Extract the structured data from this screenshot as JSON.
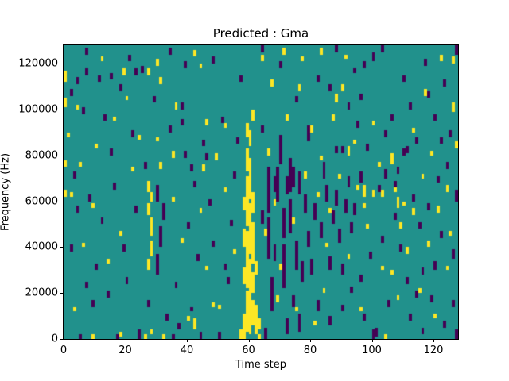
{
  "chart_data": {
    "type": "heatmap",
    "title": "Predicted : Gma",
    "xlabel": "Time step",
    "ylabel": "Frequency (Hz)",
    "grid_cols": 128,
    "grid_rows": 128,
    "x_range": [
      0,
      128
    ],
    "y_range": [
      0,
      128000
    ],
    "x_ticks": [
      0,
      20,
      40,
      60,
      80,
      100,
      120
    ],
    "y_ticks": [
      0,
      20000,
      40000,
      60000,
      80000,
      100000,
      120000
    ],
    "legend": "none",
    "grid": "off",
    "colormap": "viridis",
    "colors": {
      "mid": "#21918c",
      "high": "#fde725",
      "low": "#440154"
    },
    "default_class": "mid",
    "note": "3-level class map; runs are [col, rowStart, rowEnd], rows count from bottom (row*1000 Hz)",
    "low_runs": [
      [
        66,
        35,
        52
      ],
      [
        66,
        55,
        74
      ],
      [
        67,
        12,
        26
      ],
      [
        71,
        22,
        40
      ],
      [
        71,
        44,
        56
      ],
      [
        73,
        46,
        60
      ],
      [
        73,
        64,
        78
      ],
      [
        75,
        30,
        42
      ],
      [
        69,
        60,
        74
      ],
      [
        76,
        63,
        72
      ],
      [
        72,
        63,
        70
      ],
      [
        74,
        66,
        74
      ],
      [
        68,
        64,
        70
      ],
      [
        78,
        55,
        62
      ],
      [
        70,
        76,
        88
      ],
      [
        77,
        25,
        33
      ],
      [
        79,
        40,
        46
      ],
      [
        81,
        52,
        58
      ],
      [
        83,
        44,
        50
      ],
      [
        80,
        28,
        34
      ],
      [
        85,
        60,
        66
      ],
      [
        87,
        50,
        55
      ],
      [
        89,
        42,
        47
      ],
      [
        86,
        30,
        35
      ],
      [
        91,
        55,
        60
      ],
      [
        93,
        46,
        50
      ],
      [
        76,
        3,
        10
      ],
      [
        72,
        2,
        8
      ],
      [
        65,
        0,
        4
      ],
      [
        79,
        86,
        92
      ],
      [
        84,
        70,
        76
      ],
      [
        88,
        58,
        64
      ],
      [
        92,
        66,
        70
      ],
      [
        94,
        54,
        58
      ],
      [
        90,
        28,
        32
      ],
      [
        82,
        12,
        16
      ],
      [
        86,
        6,
        9
      ],
      [
        74,
        14,
        18
      ],
      [
        68,
        34,
        40
      ],
      [
        64,
        50,
        55
      ],
      [
        5,
        0,
        1
      ],
      [
        17,
        0,
        1
      ],
      [
        24,
        0,
        3
      ],
      [
        50,
        0,
        2
      ],
      [
        30,
        28,
        36
      ],
      [
        31,
        40,
        48
      ],
      [
        32,
        52,
        58
      ],
      [
        30,
        60,
        66
      ],
      [
        12,
        50,
        52
      ],
      [
        8,
        60,
        62
      ],
      [
        3,
        70,
        72
      ],
      [
        15,
        80,
        82
      ],
      [
        22,
        88,
        90
      ],
      [
        6,
        98,
        100
      ],
      [
        18,
        108,
        110
      ],
      [
        25,
        116,
        118
      ],
      [
        10,
        30,
        32
      ],
      [
        14,
        18,
        20
      ],
      [
        20,
        24,
        26
      ],
      [
        26,
        74,
        76
      ],
      [
        2,
        38,
        40
      ],
      [
        7,
        22,
        24
      ],
      [
        34,
        90,
        92
      ],
      [
        38,
        100,
        102
      ],
      [
        42,
        66,
        68
      ],
      [
        45,
        84,
        86
      ],
      [
        48,
        120,
        122
      ],
      [
        36,
        22,
        24
      ],
      [
        40,
        48,
        50
      ],
      [
        43,
        34,
        36
      ],
      [
        53,
        24,
        26
      ],
      [
        55,
        70,
        72
      ],
      [
        47,
        58,
        60
      ],
      [
        51,
        94,
        96
      ],
      [
        33,
        8,
        10
      ],
      [
        37,
        4,
        6
      ],
      [
        41,
        12,
        13
      ],
      [
        16,
        65,
        67
      ],
      [
        23,
        55,
        57
      ],
      [
        29,
        103,
        105
      ],
      [
        11,
        112,
        114
      ],
      [
        56,
        85,
        87
      ],
      [
        54,
        49,
        51
      ],
      [
        39,
        118,
        120
      ],
      [
        34,
        124,
        126
      ],
      [
        39,
        79,
        81
      ],
      [
        46,
        78,
        80
      ],
      [
        41,
        73,
        75
      ],
      [
        38,
        93,
        95
      ],
      [
        57,
        112,
        114
      ],
      [
        44,
        0,
        2
      ],
      [
        35,
        0,
        1
      ],
      [
        48,
        40,
        42
      ],
      [
        52,
        30,
        32
      ],
      [
        13,
        95,
        97
      ],
      [
        21,
        121,
        123
      ],
      [
        4,
        55,
        57
      ],
      [
        9,
        14,
        16
      ],
      [
        19,
        38,
        40
      ],
      [
        27,
        14,
        16
      ],
      [
        2,
        106,
        108
      ],
      [
        7,
        124,
        126
      ],
      [
        4,
        111,
        113
      ],
      [
        15,
        113,
        115
      ],
      [
        23,
        115,
        117
      ],
      [
        7,
        115,
        117
      ],
      [
        97,
        118,
        120
      ],
      [
        103,
        125,
        127
      ],
      [
        100,
        121,
        124
      ],
      [
        110,
        112,
        114
      ],
      [
        117,
        119,
        121
      ],
      [
        123,
        110,
        112
      ],
      [
        127,
        124,
        127
      ],
      [
        70,
        118,
        120
      ],
      [
        82,
        112,
        114
      ],
      [
        94,
        116,
        117
      ],
      [
        86,
        108,
        110
      ],
      [
        75,
        103,
        105
      ],
      [
        92,
        100,
        102
      ],
      [
        106,
        95,
        97
      ],
      [
        112,
        100,
        102
      ],
      [
        120,
        95,
        97
      ],
      [
        125,
        88,
        90
      ],
      [
        118,
        105,
        107
      ],
      [
        114,
        85,
        87
      ],
      [
        124,
        74,
        76
      ],
      [
        127,
        60,
        64
      ],
      [
        126,
        35,
        38
      ],
      [
        122,
        44,
        46
      ],
      [
        116,
        28,
        30
      ],
      [
        119,
        16,
        18
      ],
      [
        123,
        5,
        7
      ],
      [
        127,
        0,
        3
      ],
      [
        100,
        0,
        3
      ],
      [
        101,
        1,
        4
      ],
      [
        96,
        25,
        27
      ],
      [
        99,
        35,
        37
      ],
      [
        103,
        42,
        44
      ],
      [
        107,
        52,
        54
      ],
      [
        109,
        38,
        40
      ],
      [
        111,
        24,
        26
      ],
      [
        105,
        14,
        16
      ],
      [
        97,
        8,
        10
      ],
      [
        93,
        20,
        22
      ],
      [
        90,
        12,
        14
      ],
      [
        95,
        92,
        94
      ],
      [
        98,
        82,
        84
      ],
      [
        102,
        64,
        66
      ],
      [
        108,
        72,
        74
      ],
      [
        113,
        60,
        62
      ],
      [
        115,
        48,
        50
      ],
      [
        121,
        68,
        70
      ],
      [
        88,
        125,
        127
      ],
      [
        64,
        125,
        127
      ],
      [
        64,
        90,
        92
      ],
      [
        112,
        8,
        10
      ],
      [
        116,
        2,
        4
      ],
      [
        120,
        30,
        33
      ],
      [
        114,
        18,
        20
      ],
      [
        118,
        56,
        58
      ],
      [
        110,
        80,
        82
      ],
      [
        104,
        88,
        90
      ],
      [
        126,
        14,
        16
      ],
      [
        122,
        85,
        87
      ],
      [
        96,
        104,
        106
      ],
      [
        96,
        68,
        72
      ],
      [
        104,
        70,
        73
      ],
      [
        107,
        64,
        68
      ],
      [
        111,
        81,
        83
      ],
      [
        90,
        81,
        83
      ],
      [
        88,
        81,
        83
      ]
    ],
    "high_runs": [
      [
        59,
        3,
        20
      ],
      [
        59,
        22,
        46
      ],
      [
        59,
        49,
        70
      ],
      [
        59,
        73,
        82
      ],
      [
        59,
        88,
        93
      ],
      [
        60,
        2,
        34
      ],
      [
        60,
        37,
        58
      ],
      [
        60,
        61,
        78
      ],
      [
        60,
        84,
        90
      ],
      [
        61,
        6,
        16
      ],
      [
        61,
        20,
        28
      ],
      [
        61,
        33,
        50
      ],
      [
        61,
        55,
        63
      ],
      [
        61,
        95,
        99
      ],
      [
        58,
        0,
        10
      ],
      [
        58,
        24,
        30
      ],
      [
        58,
        40,
        47
      ],
      [
        58,
        56,
        61
      ],
      [
        62,
        2,
        14
      ],
      [
        62,
        28,
        33
      ],
      [
        63,
        4,
        8
      ],
      [
        57,
        0,
        3
      ],
      [
        28,
        2,
        3
      ],
      [
        27,
        30,
        34
      ],
      [
        28,
        36,
        42
      ],
      [
        28,
        45,
        52
      ],
      [
        27,
        54,
        58
      ],
      [
        28,
        60,
        63
      ],
      [
        27,
        64,
        68
      ],
      [
        0,
        62,
        64
      ],
      [
        0,
        75,
        77
      ],
      [
        0,
        101,
        104
      ],
      [
        0,
        112,
        116
      ],
      [
        3,
        12,
        13
      ],
      [
        6,
        40,
        41
      ],
      [
        9,
        0,
        1
      ],
      [
        9,
        57,
        58
      ],
      [
        2,
        62,
        63
      ],
      [
        5,
        75,
        76
      ],
      [
        1,
        88,
        89
      ],
      [
        12,
        121,
        122
      ],
      [
        20,
        104,
        105
      ],
      [
        26,
        0,
        1
      ],
      [
        32,
        0,
        1
      ],
      [
        14,
        33,
        34
      ],
      [
        18,
        45,
        46
      ],
      [
        22,
        73,
        74
      ],
      [
        10,
        83,
        84
      ],
      [
        16,
        95,
        96
      ],
      [
        4,
        100,
        101
      ],
      [
        30,
        86,
        87
      ],
      [
        30,
        119,
        121
      ],
      [
        35,
        60,
        61
      ],
      [
        35,
        79,
        81
      ],
      [
        38,
        42,
        43
      ],
      [
        40,
        8,
        9
      ],
      [
        42,
        123,
        125
      ],
      [
        44,
        55,
        56
      ],
      [
        44,
        118,
        119
      ],
      [
        46,
        30,
        31
      ],
      [
        46,
        93,
        95
      ],
      [
        49,
        78,
        80
      ],
      [
        50,
        13,
        14
      ],
      [
        52,
        64,
        65
      ],
      [
        52,
        92,
        93
      ],
      [
        48,
        14,
        15
      ],
      [
        55,
        37,
        38
      ],
      [
        45,
        73,
        75
      ],
      [
        31,
        74,
        76
      ],
      [
        36,
        100,
        102
      ],
      [
        24,
        87,
        88
      ],
      [
        19,
        115,
        117
      ],
      [
        27,
        115,
        117
      ],
      [
        31,
        111,
        113
      ],
      [
        42,
        4,
        8
      ],
      [
        18,
        1,
        2
      ],
      [
        63,
        0,
        1
      ],
      [
        65,
        45,
        47
      ],
      [
        68,
        58,
        60
      ],
      [
        70,
        30,
        32
      ],
      [
        74,
        50,
        52
      ],
      [
        78,
        70,
        72
      ],
      [
        80,
        90,
        92
      ],
      [
        82,
        62,
        63
      ],
      [
        85,
        40,
        41
      ],
      [
        88,
        103,
        106
      ],
      [
        90,
        108,
        110
      ],
      [
        76,
        108,
        110
      ],
      [
        66,
        80,
        82
      ],
      [
        72,
        95,
        97
      ],
      [
        84,
        20,
        21
      ],
      [
        86,
        55,
        56
      ],
      [
        92,
        35,
        36
      ],
      [
        95,
        65,
        66
      ],
      [
        98,
        48,
        49
      ],
      [
        104,
        0,
        1
      ],
      [
        102,
        75,
        76
      ],
      [
        106,
        28,
        29
      ],
      [
        110,
        58,
        59
      ],
      [
        113,
        90,
        91
      ],
      [
        116,
        70,
        71
      ],
      [
        118,
        40,
        42
      ],
      [
        121,
        55,
        57
      ],
      [
        124,
        30,
        31
      ],
      [
        126,
        99,
        102
      ],
      [
        122,
        121,
        123
      ],
      [
        108,
        17,
        18
      ],
      [
        96,
        12,
        13
      ],
      [
        91,
        122,
        123
      ],
      [
        77,
        121,
        122
      ],
      [
        67,
        110,
        112
      ],
      [
        94,
        85,
        86
      ],
      [
        100,
        93,
        94
      ],
      [
        115,
        20,
        21
      ],
      [
        120,
        9,
        10
      ],
      [
        125,
        45,
        46
      ],
      [
        119,
        80,
        81
      ],
      [
        124,
        64,
        66
      ],
      [
        127,
        83,
        85
      ],
      [
        117,
        106,
        108
      ],
      [
        126,
        120,
        122
      ],
      [
        111,
        37,
        39
      ],
      [
        113,
        54,
        56
      ],
      [
        109,
        48,
        50
      ],
      [
        83,
        124,
        126
      ],
      [
        71,
        124,
        126
      ],
      [
        87,
        95,
        97
      ],
      [
        64,
        121,
        123
      ],
      [
        69,
        16,
        18
      ],
      [
        75,
        12,
        13
      ],
      [
        81,
        6,
        7
      ],
      [
        89,
        70,
        71
      ],
      [
        97,
        57,
        58
      ],
      [
        103,
        30,
        31
      ],
      [
        107,
        64,
        65
      ],
      [
        83,
        78,
        79
      ],
      [
        92,
        80,
        83
      ],
      [
        97,
        62,
        66
      ],
      [
        100,
        62,
        64
      ],
      [
        103,
        62,
        64
      ],
      [
        106,
        76,
        80
      ],
      [
        108,
        57,
        61
      ]
    ]
  }
}
